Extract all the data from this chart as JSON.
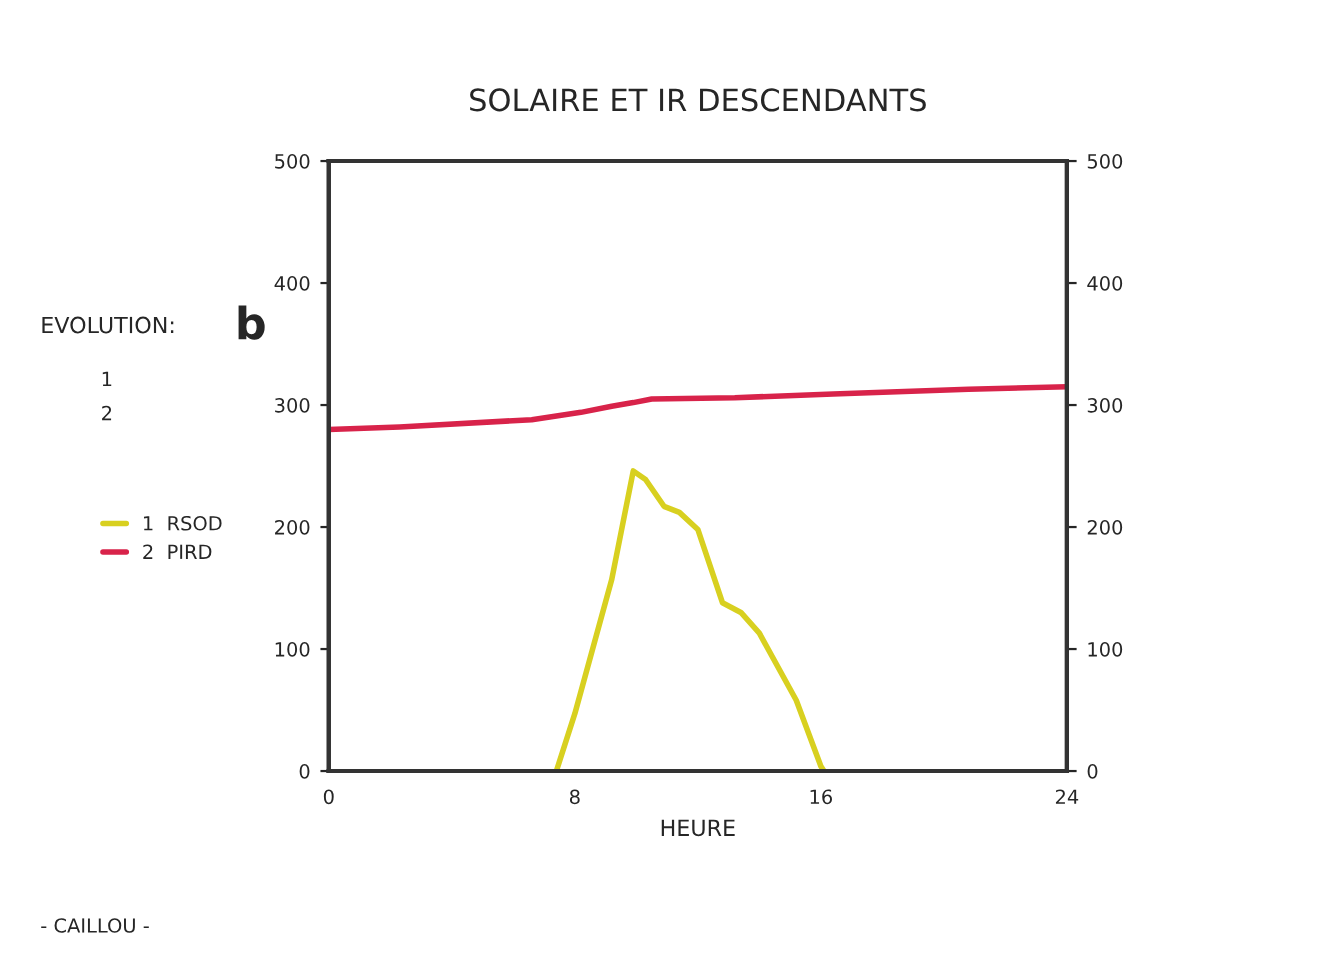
{
  "chart_data": {
    "type": "line",
    "title": "SOLAIRE ET IR DESCENDANTS",
    "xlabel": "HEURE",
    "x": [
      7.4,
      8.0,
      9.2,
      9.9,
      10.3,
      10.9,
      11.4,
      12.0,
      12.8,
      13.4,
      14.0,
      15.2,
      16.0,
      16.1
    ],
    "series": [
      {
        "name": "1  RSOD",
        "color": "#d8d020",
        "values": [
          0,
          47,
          157,
          246,
          239,
          217,
          212,
          198,
          138,
          130,
          113,
          58,
          4,
          0
        ]
      },
      {
        "name": "2  PIRD",
        "color": "#d8234a",
        "x": [
          0,
          2.3,
          6.6,
          8.2,
          9.2,
          9.9,
          10.5,
          13.2,
          16.4,
          20.8,
          24
        ],
        "values": [
          280,
          282,
          288,
          294,
          299,
          302,
          305,
          306,
          309,
          313,
          315
        ]
      }
    ],
    "xlim": [
      0,
      24
    ],
    "xticks": [
      0,
      8,
      16,
      24
    ],
    "ylim": [
      0,
      500
    ],
    "yticks": [
      0,
      100,
      200,
      300,
      400,
      500
    ],
    "y2lim": [
      0,
      500
    ],
    "y2ticks": [
      0,
      100,
      200,
      300,
      400,
      500
    ],
    "legend": "left",
    "grid": false,
    "annotations": [
      "EVOLUTION:",
      "b",
      "1",
      "2",
      "- CAILLOU -"
    ]
  }
}
